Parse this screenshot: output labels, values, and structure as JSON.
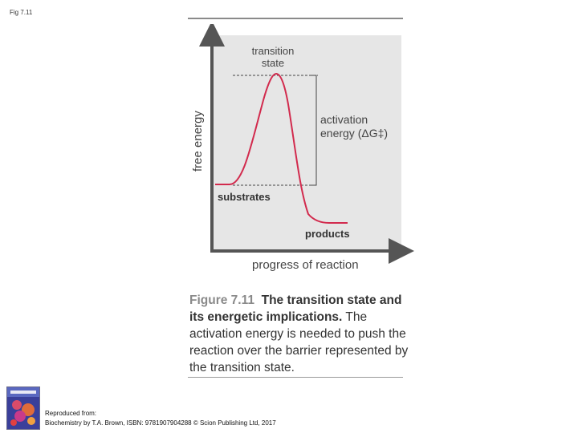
{
  "slide": {
    "label": "Fig 7.11"
  },
  "diagram": {
    "y_axis_label": "free energy",
    "x_axis_label": "progress of reaction",
    "labels": {
      "transition_state_line1": "transition",
      "transition_state_line2": "state",
      "activation_line1": "activation",
      "activation_line2": "energy (ΔG‡)",
      "substrates": "substrates",
      "products": "products"
    },
    "colors": {
      "curve": "#d22a4d",
      "panel": "#e6e6e6",
      "axis": "#555555"
    }
  },
  "caption": {
    "figure_number": "Figure 7.11",
    "title": "The transition state and its energetic implications.",
    "body": "The activation energy is needed to push the reaction over the barrier represented by the transition state."
  },
  "credit": {
    "line1": "Reproduced from:",
    "line2": "Biochemistry by T.A. Brown, ISBN: 9781907904288 © Scion Publishing Ltd, 2017"
  },
  "book_cover": {
    "icon": "book-cover-icon"
  }
}
